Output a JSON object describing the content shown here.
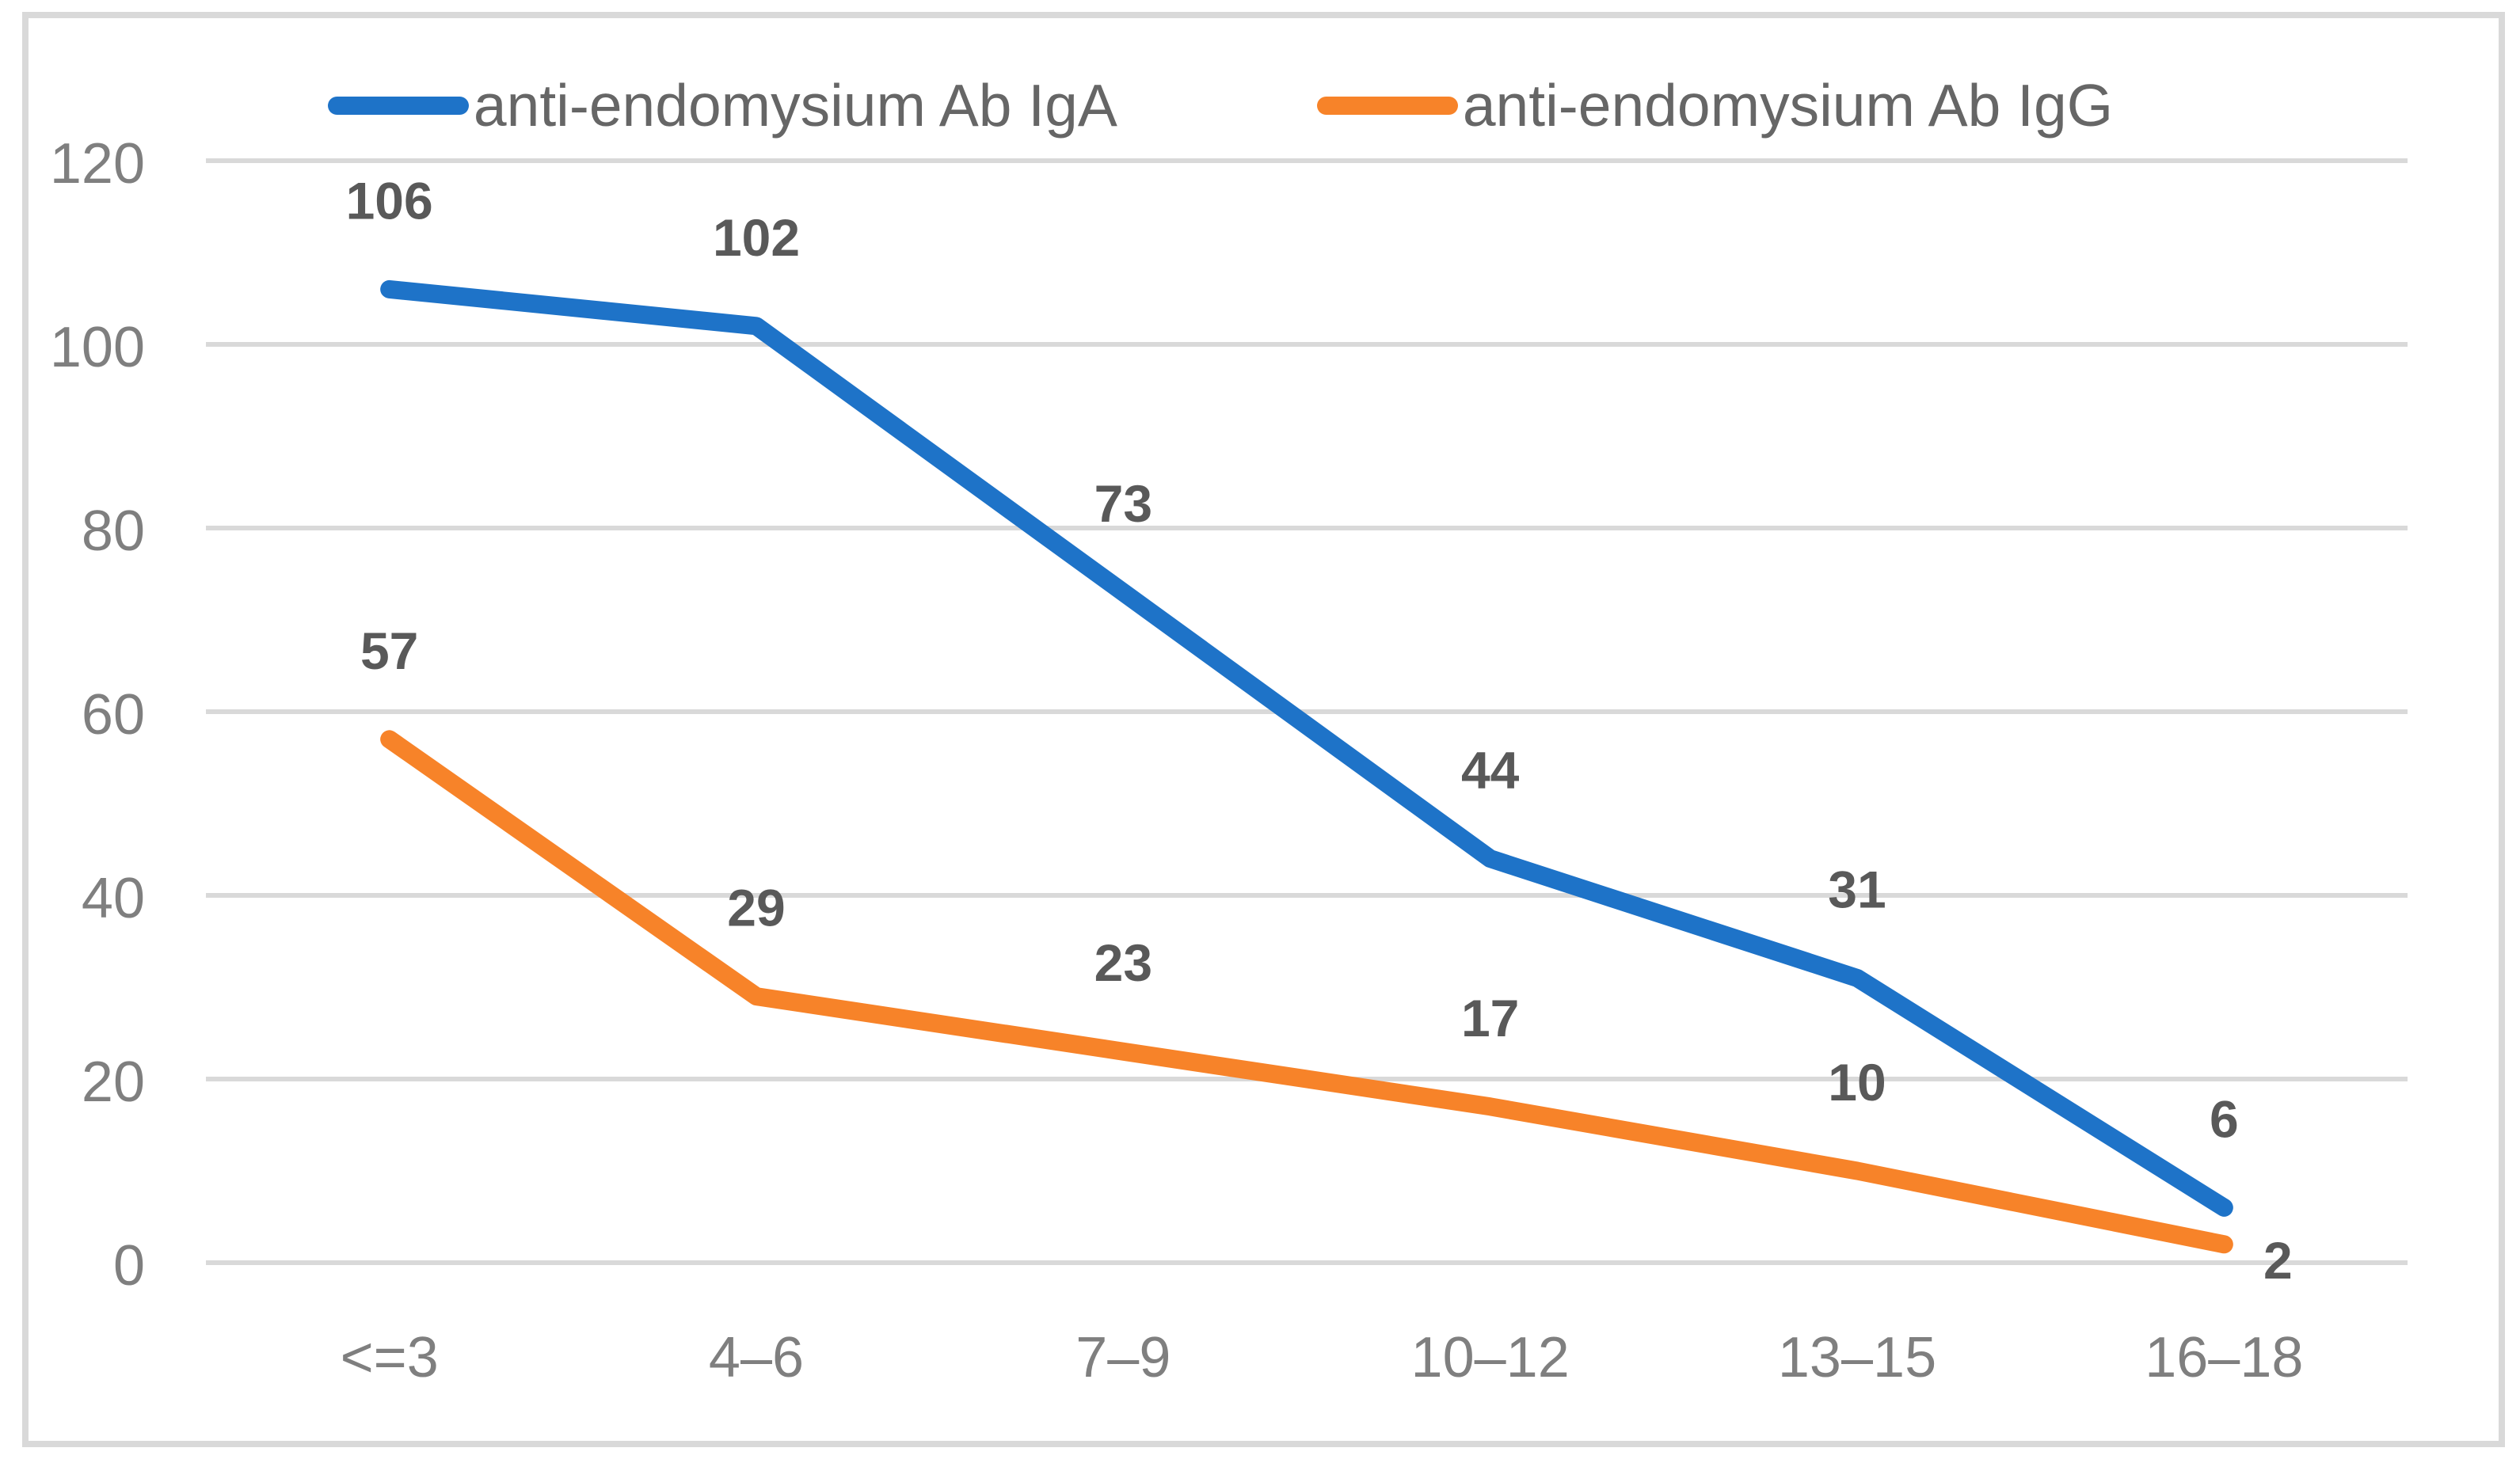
{
  "chart_data": {
    "type": "line",
    "categories": [
      "<=3",
      "4–6",
      "7–9",
      "10–12",
      "13–15",
      "16–18"
    ],
    "series": [
      {
        "name": "anti-endomysium Ab IgA",
        "color": "#1E73C8",
        "values": [
          106,
          102,
          73,
          44,
          31,
          6
        ]
      },
      {
        "name": "anti-endomysium Ab IgG",
        "color": "#F78329",
        "values": [
          57,
          29,
          23,
          17,
          10,
          2
        ]
      }
    ],
    "title": "",
    "xlabel": "",
    "ylabel": "",
    "ylim": [
      0,
      120
    ],
    "yticks": [
      0,
      20,
      40,
      60,
      80,
      100,
      120
    ],
    "grid": true,
    "legend_position": "top",
    "data_labels": true,
    "data_label_style": "bold, above points; last IgG label placed right of its point"
  },
  "colors": {
    "background": "#FFFFFF",
    "chart_border": "#D9D9D9",
    "gridline": "#D9D9D9",
    "axis_text": "#7F7F7F",
    "data_label_text": "#595959",
    "legend_text": "#666666",
    "series_iga": "#1E73C8",
    "series_igg": "#F78329"
  }
}
